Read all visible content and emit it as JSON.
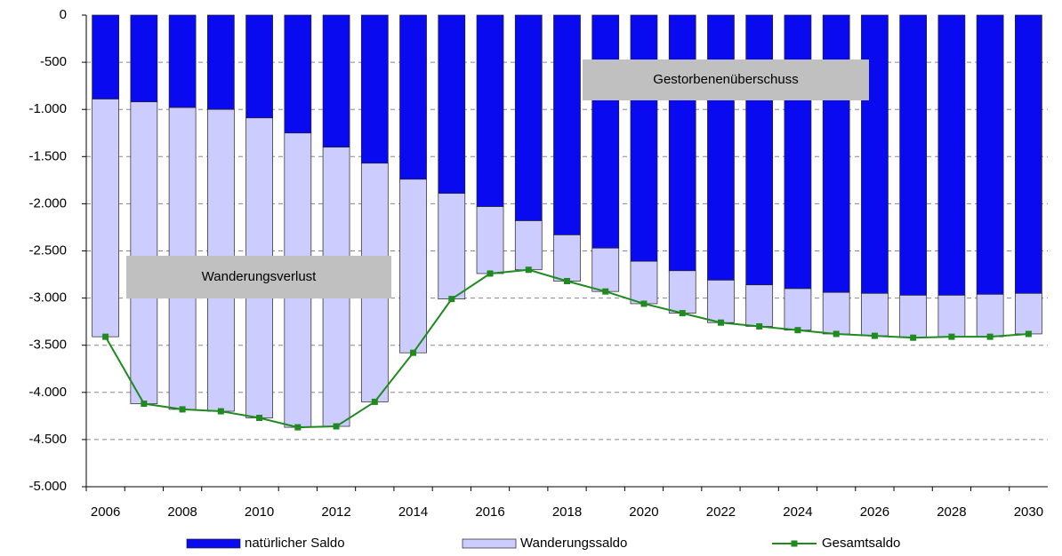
{
  "chart_data": {
    "type": "bar",
    "stacked": true,
    "categories": [
      2006,
      null,
      2008,
      null,
      2010,
      null,
      2012,
      null,
      2014,
      null,
      2016,
      null,
      2018,
      null,
      2020,
      null,
      2022,
      null,
      2024,
      null,
      2026,
      null,
      2028,
      null,
      2030
    ],
    "series": [
      {
        "name": "natürlicher Saldo",
        "color": "#0a0af0",
        "values": [
          -890,
          -920,
          -980,
          -1000,
          -1090,
          -1250,
          -1400,
          -1570,
          -1740,
          -1890,
          -2030,
          -2180,
          -2330,
          -2470,
          -2610,
          -2710,
          -2810,
          -2860,
          -2900,
          -2940,
          -2950,
          -2970,
          -2970,
          -2960,
          -2950
        ]
      },
      {
        "name": "Wanderungssaldo",
        "color": "#ccccff",
        "values": [
          -2520,
          -3200,
          -3200,
          -3200,
          -3180,
          -3120,
          -2960,
          -2530,
          -1840,
          -1120,
          -710,
          -520,
          -490,
          -460,
          -450,
          -450,
          -450,
          -440,
          -440,
          -440,
          -450,
          -450,
          -440,
          -450,
          -430
        ]
      },
      {
        "name": "Gesamtsaldo",
        "type": "line",
        "color": "#1f8a1f",
        "values": [
          -3410,
          -4120,
          -4180,
          -4200,
          -4270,
          -4370,
          -4360,
          -4100,
          -3580,
          -3010,
          -2740,
          -2700,
          -2820,
          -2930,
          -3060,
          -3160,
          -3260,
          -3300,
          -3340,
          -3380,
          -3400,
          -3420,
          -3410,
          -3410,
          -3380
        ]
      }
    ],
    "ylim": [
      -5000,
      0
    ],
    "yticks": [
      0,
      -500,
      {
        "value": -1000,
        "label": "-1.000"
      },
      {
        "value": -1500,
        "label": "-1.500"
      },
      {
        "value": -2000,
        "label": "-2.000"
      },
      {
        "value": -2500,
        "label": "-2.500"
      },
      {
        "value": -3000,
        "label": "-3.000"
      },
      {
        "value": -3500,
        "label": "-3.500"
      },
      {
        "value": -4000,
        "label": "-4.000"
      },
      {
        "value": -4500,
        "label": "-4.500"
      },
      {
        "value": -5000,
        "label": "-5.000"
      }
    ],
    "grid": true,
    "legend": "bottom",
    "annotations": [
      "Gestorbenenüberschuss",
      "Wanderungsverlust"
    ]
  }
}
